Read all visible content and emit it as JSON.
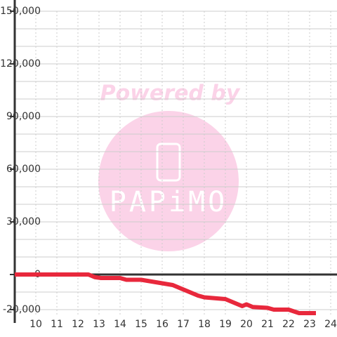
{
  "chart_data": {
    "type": "line",
    "watermark": {
      "title": "Powered by",
      "logo": "PAPiMO"
    },
    "x": [
      9,
      12.5,
      12.8,
      13.1,
      14,
      14.3,
      15,
      15.5,
      16,
      16.5,
      17,
      17.7,
      18,
      19,
      19.5,
      19.8,
      20,
      20.3,
      21,
      21.3,
      22,
      22.5,
      23.3
    ],
    "series": [
      {
        "color": "#e8283c",
        "values": [
          0,
          0,
          -1500,
          -2000,
          -2000,
          -3000,
          -3000,
          -4000,
          -5000,
          -6000,
          -8500,
          -12000,
          -13000,
          -14000,
          -16500,
          -18000,
          -17000,
          -18500,
          -19000,
          -20000,
          -20000,
          -22000,
          -22000
        ]
      }
    ],
    "xlim": [
      9,
      24.3
    ],
    "xticks": [
      10,
      11,
      12,
      13,
      14,
      15,
      16,
      17,
      18,
      19,
      20,
      21,
      22,
      23,
      24
    ],
    "ylim": [
      -23000,
      150000
    ],
    "yticks": [
      {
        "value": -20000,
        "label": "-20,000"
      },
      0,
      {
        "value": 30000,
        "label": "30,000"
      },
      {
        "value": 60000,
        "label": "60,000"
      },
      {
        "value": 90000,
        "label": "90,000"
      },
      {
        "value": 120000,
        "label": "120,000"
      },
      {
        "value": 150000,
        "label": "150,000"
      }
    ],
    "ygrid": [
      -20000,
      -10000,
      10000,
      20000,
      40000,
      50000,
      70000,
      80000,
      100000,
      110000,
      130000,
      140000
    ],
    "grid": true
  }
}
